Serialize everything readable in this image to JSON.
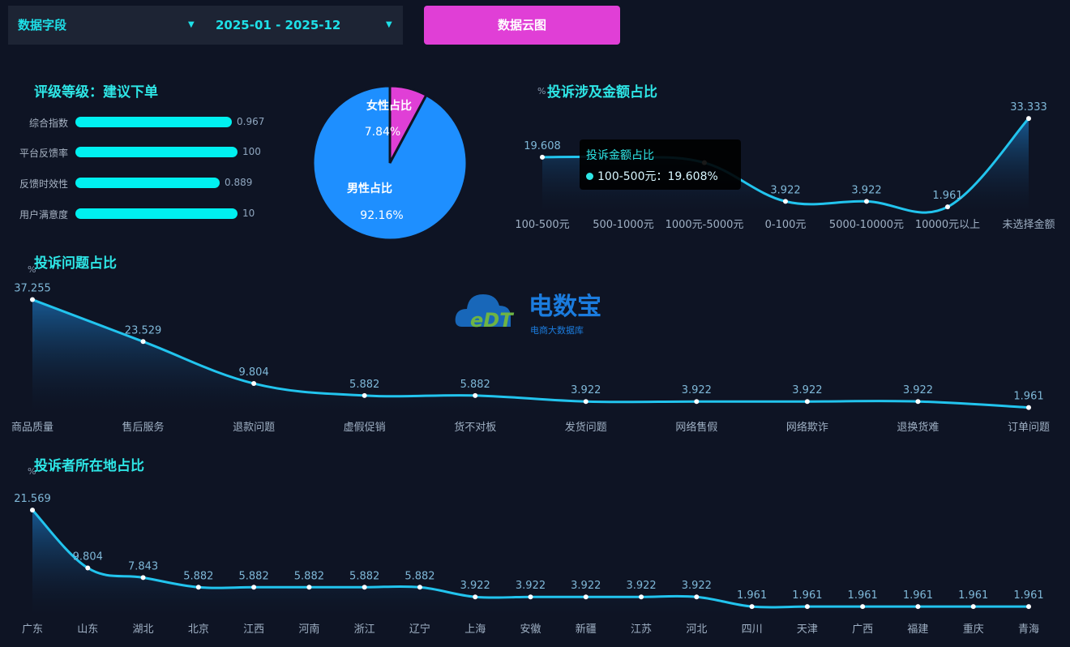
{
  "filters": {
    "field_select": "数据字段",
    "date_range": "2025-01 - 2025-12"
  },
  "cloud_button": "数据云图",
  "rating": {
    "title": "评级等级：建议下单",
    "items": [
      {
        "label": "综合指数",
        "value": "0.967",
        "fill": 0.967
      },
      {
        "label": "平台反馈率",
        "value": "100",
        "fill": 1.0
      },
      {
        "label": "反馈时效性",
        "value": "0.889",
        "fill": 0.889
      },
      {
        "label": "用户满意度",
        "value": "10",
        "fill": 1.0
      }
    ]
  },
  "watermark": {
    "name": "电数宝",
    "sub": "电商大数据库",
    "mark": "eDT"
  },
  "colors": {
    "accent": "#1ee0e8",
    "magenta": "#e03fd6",
    "male": "#1e8fff",
    "line": "#22c4ee"
  },
  "chart_data": [
    {
      "id": "gender",
      "type": "pie",
      "slices": [
        {
          "name": "女性占比",
          "value": 7.84,
          "label": "7.84%"
        },
        {
          "name": "男性占比",
          "value": 92.16,
          "label": "92.16%"
        }
      ]
    },
    {
      "id": "amount",
      "type": "area",
      "title": "投诉涉及金额占比",
      "ylabel": "%",
      "categories": [
        "100-500元",
        "500-1000元",
        "1000元-5000元",
        "0-100元",
        "5000-10000元",
        "10000元以上",
        "未选择金额"
      ],
      "values": [
        19.608,
        19.608,
        17.647,
        3.922,
        3.922,
        1.961,
        33.333
      ],
      "labels": [
        "19.608",
        "",
        "",
        "3.922",
        "3.922",
        "1.961",
        "33.333"
      ],
      "tooltip": {
        "title": "投诉金额占比",
        "item": "100-500元：19.608%"
      }
    },
    {
      "id": "issue",
      "type": "area",
      "title": "投诉问题占比",
      "ylabel": "%",
      "categories": [
        "商品质量",
        "售后服务",
        "退款问题",
        "虚假促销",
        "货不对板",
        "发货问题",
        "网络售假",
        "网络欺诈",
        "退换货难",
        "订单问题"
      ],
      "values": [
        37.255,
        23.529,
        9.804,
        5.882,
        5.882,
        3.922,
        3.922,
        3.922,
        3.922,
        1.961
      ],
      "labels": [
        "37.255",
        "23.529",
        "9.804",
        "5.882",
        "5.882",
        "3.922",
        "3.922",
        "3.922",
        "3.922",
        "1.961"
      ]
    },
    {
      "id": "region",
      "type": "area",
      "title": "投诉者所在地占比",
      "ylabel": "%",
      "categories": [
        "广东",
        "山东",
        "湖北",
        "北京",
        "江西",
        "河南",
        "浙江",
        "辽宁",
        "上海",
        "安徽",
        "新疆",
        "江苏",
        "河北",
        "四川",
        "天津",
        "广西",
        "福建",
        "重庆",
        "青海"
      ],
      "values": [
        21.569,
        9.804,
        7.843,
        5.882,
        5.882,
        5.882,
        5.882,
        5.882,
        3.922,
        3.922,
        3.922,
        3.922,
        3.922,
        1.961,
        1.961,
        1.961,
        1.961,
        1.961,
        1.961
      ],
      "labels": [
        "21.569",
        "9.804",
        "7.843",
        "5.882",
        "5.882",
        "5.882",
        "5.882",
        "5.882",
        "3.922",
        "3.922",
        "3.922",
        "3.922",
        "3.922",
        "1.961",
        "1.961",
        "1.961",
        "1.961",
        "1.961",
        "1.961"
      ]
    }
  ]
}
